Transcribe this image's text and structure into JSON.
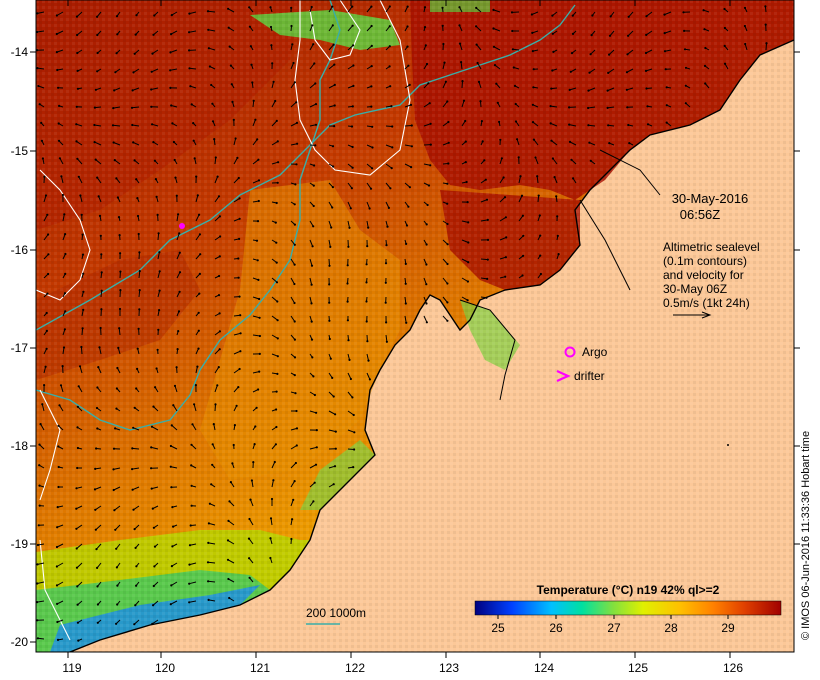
{
  "map": {
    "lon_ticks": [
      "119",
      "120",
      "121",
      "122",
      "123",
      "124",
      "125",
      "126"
    ],
    "lat_ticks": [
      "-14",
      "-15",
      "-16",
      "-17",
      "-18",
      "-19",
      "-20"
    ],
    "land_color": "#fcc898",
    "frame_color": "#000000"
  },
  "annotations": {
    "date": "30-May-2016",
    "time": "06:56Z",
    "altimetry_lines": [
      "Altimetric sealevel",
      "(0.1m contours)",
      "and velocity for",
      "30-May 06Z",
      "0.5m/s (1kt 24h)"
    ],
    "argo_label": "Argo",
    "drifter_label": "drifter",
    "argo_symbol_color": "#ff00ff",
    "drifter_symbol_color": "#ff00ff"
  },
  "bathymetry_legend": {
    "label": "200  1000m",
    "color": "#3aaea8"
  },
  "colorbar": {
    "title": "Temperature (°C) n19 42% ql>=2",
    "ticks": [
      "25",
      "26",
      "27",
      "28",
      "29"
    ],
    "colors": [
      "#00007f",
      "#0040ff",
      "#00c0ff",
      "#00e0a0",
      "#80e040",
      "#e0f000",
      "#ffc000",
      "#ff8000",
      "#e04000",
      "#a00000"
    ]
  },
  "credit": "© IMOS 06-Jun-2016 11:33:36 Hobart time"
}
